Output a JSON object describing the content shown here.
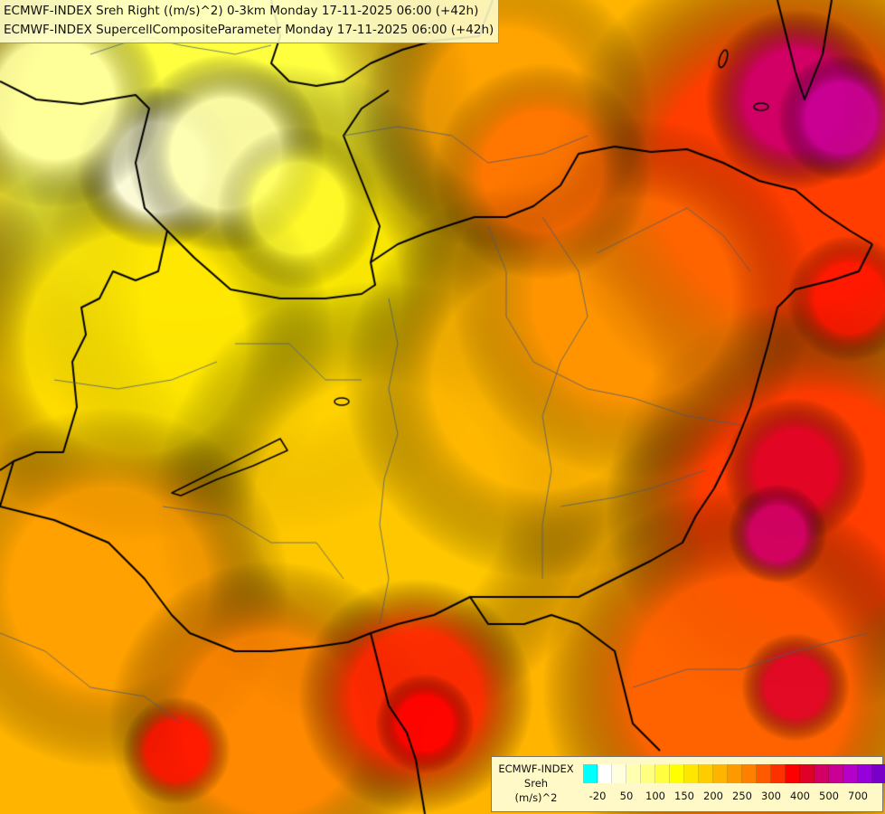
{
  "header": {
    "line1": "ECMWF-INDEX Sreh Right ((m/s)^2) 0-3km Monday 17-11-2025 06:00 (+42h)",
    "line2": "ECMWF-INDEX SupercellCompositeParameter Monday 17-11-2025 06:00 (+42h)"
  },
  "legend": {
    "title_line1": "ECMWF-INDEX",
    "title_line2": "Sreh",
    "title_line3": "(m/s)^2",
    "colors": [
      "#00ffff",
      "#ffffff",
      "#ffffe0",
      "#ffffb0",
      "#ffff80",
      "#ffff40",
      "#ffff00",
      "#ffe600",
      "#ffcc00",
      "#ffb400",
      "#ff9900",
      "#ff7f00",
      "#ff5a00",
      "#ff3000",
      "#ff0000",
      "#e00028",
      "#d20064",
      "#c80096",
      "#b400c8",
      "#9600dc",
      "#7800c8",
      "#5000a0",
      "#1e0078"
    ],
    "ticks": [
      "-20",
      "50",
      "100",
      "150",
      "200",
      "250",
      "300",
      "400",
      "500",
      "700"
    ]
  }
}
